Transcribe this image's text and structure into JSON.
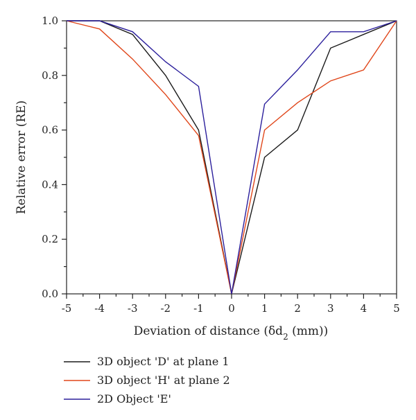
{
  "chart_data": {
    "type": "line",
    "title": "",
    "xlabel": "Deviation of distance (δd",
    "xlabel_sub": "2",
    "xlabel_suffix": " (mm))",
    "ylabel": "Relative error (RE)",
    "xlim": [
      -5,
      5
    ],
    "ylim": [
      0,
      1
    ],
    "x_ticks": [
      -5,
      -4,
      -3,
      -2,
      -1,
      0,
      1,
      2,
      3,
      4,
      5
    ],
    "x_tick_labels": [
      "-5",
      "-4",
      "-3",
      "-2",
      "-1",
      "0",
      "1",
      "2",
      "3",
      "4",
      "5"
    ],
    "y_ticks": [
      0,
      0.2,
      0.4,
      0.6,
      0.8,
      1.0
    ],
    "y_tick_labels": [
      "0.0",
      "0.2",
      "0.4",
      "0.6",
      "0.8",
      "1.0"
    ],
    "grid": false,
    "legend_position": "bottom",
    "x": [
      -5,
      -4,
      -3,
      -2,
      -1,
      0,
      1,
      2,
      3,
      4,
      5
    ],
    "series": [
      {
        "name": "3D object 'D' at plane 1",
        "color": "#1a1a1a",
        "values": [
          1.0,
          1.0,
          0.95,
          0.8,
          0.6,
          0.0,
          0.5,
          0.6,
          0.9,
          0.95,
          1.0
        ]
      },
      {
        "name": "3D object 'H' at plane 2",
        "color": "#e0461a",
        "values": [
          1.0,
          0.97,
          0.86,
          0.73,
          0.58,
          0.0,
          0.6,
          0.7,
          0.78,
          0.82,
          1.0
        ]
      },
      {
        "name": "2D Object 'E'",
        "color": "#2b1f9c",
        "values": [
          1.0,
          1.0,
          0.96,
          0.85,
          0.76,
          0.0,
          0.695,
          0.82,
          0.96,
          0.96,
          1.0
        ]
      }
    ]
  }
}
